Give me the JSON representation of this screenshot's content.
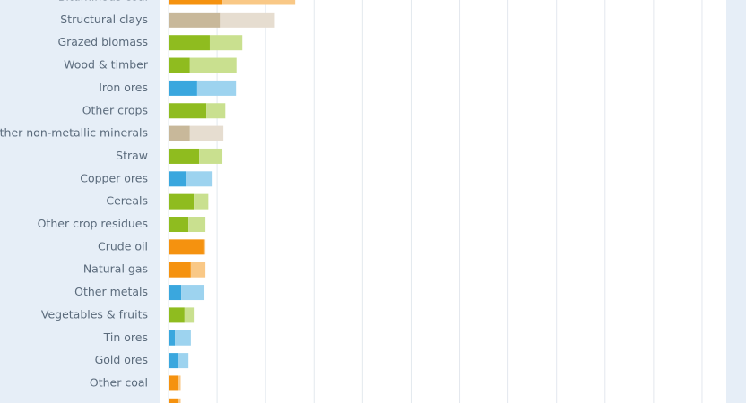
{
  "chart_data": {
    "type": "stacked-hbar",
    "categories": [
      "Bituminous coal",
      "Structural clays",
      "Grazed biomass",
      "Wood & timber",
      "Iron ores",
      "Other crops",
      "Other non-metallic minerals",
      "Straw",
      "Copper ores",
      "Cereals",
      "Other crop residues",
      "Crude oil",
      "Natural gas",
      "Other metals",
      "Vegetables & fruits",
      "Tin ores",
      "Gold ores",
      "Other coal",
      null
    ],
    "series": [
      {
        "values": [
          1.11,
          1.06,
          0.85,
          0.44,
          0.59,
          0.78,
          0.44,
          0.63,
          0.37,
          0.52,
          0.41,
          0.72,
          0.46,
          0.26,
          0.33,
          0.13,
          0.19,
          0.19,
          0.19
        ],
        "colors": [
          "#f5920f",
          "#c8b89a",
          "#8fbc1f",
          "#8fbc1f",
          "#3aa7de",
          "#8fbc1f",
          "#c8b89a",
          "#8fbc1f",
          "#3aa7de",
          "#8fbc1f",
          "#8fbc1f",
          "#f5920f",
          "#f5920f",
          "#3aa7de",
          "#8fbc1f",
          "#3aa7de",
          "#3aa7de",
          "#f5920f",
          "#f5920f"
        ]
      },
      {
        "values": [
          1.5,
          1.13,
          0.67,
          0.96,
          0.8,
          0.39,
          0.69,
          0.48,
          0.52,
          0.3,
          0.35,
          0.04,
          0.3,
          0.48,
          0.19,
          0.33,
          0.22,
          0.06,
          0.06
        ],
        "colors": [
          "#f9c886",
          "#e6ddd0",
          "#c9e08f",
          "#c9e08f",
          "#9dd3ef",
          "#c9e08f",
          "#e6ddd0",
          "#c9e08f",
          "#9dd3ef",
          "#c9e08f",
          "#c9e08f",
          "#f9c886",
          "#f9c886",
          "#9dd3ef",
          "#c9e08f",
          "#9dd3ef",
          "#9dd3ef",
          "#f9c886",
          "#f9c886"
        ]
      }
    ],
    "xlim": [
      0,
      11.5
    ],
    "xticks": [
      0,
      1,
      2,
      3,
      4,
      5,
      6,
      7,
      8,
      9,
      10,
      11
    ],
    "grid": true
  }
}
